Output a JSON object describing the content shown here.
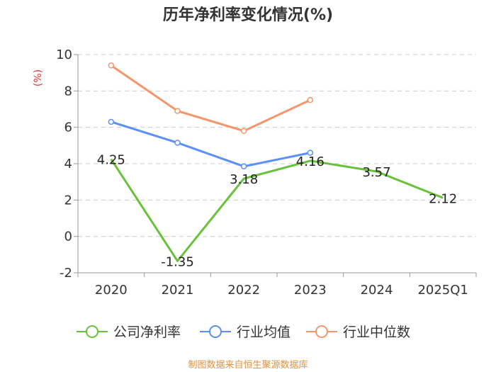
{
  "chart_data": {
    "type": "line",
    "title": "历年净利率变化情况(%)",
    "ylabel": "(%)",
    "categories": [
      "2020",
      "2021",
      "2022",
      "2023",
      "2024",
      "2025Q1"
    ],
    "ylim": [
      -2,
      10
    ],
    "yticks": [
      "10",
      "8",
      "6",
      "4",
      "2",
      "0",
      "-2"
    ],
    "grid": true,
    "legend_position": "bottom",
    "series": [
      {
        "name": "公司净利率",
        "color": "#67c23a",
        "values": [
          4.25,
          -1.35,
          3.18,
          4.16,
          3.57,
          2.12
        ],
        "labels": [
          "4.25",
          "-1.35",
          "3.18",
          "4.16",
          "3.57",
          "2.12"
        ]
      },
      {
        "name": "行业均值",
        "color": "#5b8ff9",
        "values": [
          6.3,
          5.15,
          3.85,
          4.6,
          null,
          null
        ]
      },
      {
        "name": "行业中位数",
        "color": "#f7956a",
        "values": [
          9.4,
          6.9,
          5.8,
          7.5,
          null,
          null
        ]
      }
    ],
    "colors": {
      "unit": "#e03030",
      "source": "#e69138"
    }
  },
  "source_text": "制图数据来自恒生聚源数据库"
}
